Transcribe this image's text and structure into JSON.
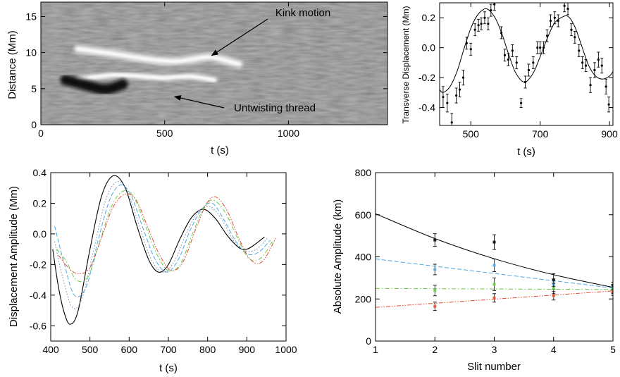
{
  "chart_data": [
    {
      "type": "heatmap",
      "xlabel": "t (s)",
      "ylabel": "Distance (Mm)",
      "xlim": [
        0,
        1400
      ],
      "ylim": [
        0,
        17
      ],
      "xticks": [
        0,
        500,
        1000
      ],
      "yticks": [
        0,
        5,
        10,
        15
      ],
      "colormap": "grayscale",
      "features": [
        {
          "name": "bright kink thread",
          "x": [
            150,
            300,
            450,
            550,
            650,
            700,
            800
          ],
          "y": [
            10.5,
            9.8,
            9.0,
            8.8,
            9.3,
            9.3,
            8.4
          ]
        },
        {
          "name": "untwisting thread",
          "x": [
            150,
            300,
            450,
            500,
            600,
            700
          ],
          "y": [
            6.3,
            6.9,
            6.6,
            6.5,
            6.7,
            6.2
          ]
        },
        {
          "name": "dark lane",
          "x": [
            100,
            180,
            260,
            330
          ],
          "y": [
            6.2,
            5.5,
            4.9,
            5.6
          ]
        }
      ],
      "annotations": [
        {
          "text": "Kink motion",
          "arrow_to": [
            690,
            9.6
          ]
        },
        {
          "text": "Untwisting thread",
          "arrow_to": [
            540,
            3.9
          ]
        }
      ]
    },
    {
      "type": "scatter",
      "xlabel": "t (s)",
      "ylabel": "Transverse Displacement (Mm)",
      "xlim": [
        410,
        910
      ],
      "ylim": [
        -0.52,
        0.3
      ],
      "xticks": [
        500,
        700,
        900
      ],
      "yticks": [
        -0.4,
        -0.2,
        0.0,
        0.2
      ],
      "points": [
        {
          "x": 420,
          "y": -0.33,
          "err": 0.07
        },
        {
          "x": 432,
          "y": -0.37,
          "err": 0.06
        },
        {
          "x": 445,
          "y": -0.5,
          "err": 0.06
        },
        {
          "x": 458,
          "y": -0.32,
          "err": 0.05
        },
        {
          "x": 468,
          "y": -0.28,
          "err": 0.05
        },
        {
          "x": 478,
          "y": -0.2,
          "err": 0.05
        },
        {
          "x": 488,
          "y": 0.03,
          "err": 0.04
        },
        {
          "x": 500,
          "y": -0.01,
          "err": 0.04
        },
        {
          "x": 512,
          "y": 0.12,
          "err": 0.04
        },
        {
          "x": 522,
          "y": 0.15,
          "err": 0.04
        },
        {
          "x": 530,
          "y": 0.16,
          "err": 0.04
        },
        {
          "x": 540,
          "y": 0.2,
          "err": 0.04
        },
        {
          "x": 550,
          "y": 0.16,
          "err": 0.04
        },
        {
          "x": 558,
          "y": 0.25,
          "err": 0.04
        },
        {
          "x": 568,
          "y": 0.29,
          "err": 0.04
        },
        {
          "x": 588,
          "y": 0.1,
          "err": 0.04
        },
        {
          "x": 598,
          "y": -0.05,
          "err": 0.04
        },
        {
          "x": 608,
          "y": -0.08,
          "err": 0.04
        },
        {
          "x": 620,
          "y": -0.02,
          "err": 0.04
        },
        {
          "x": 632,
          "y": -0.1,
          "err": 0.04
        },
        {
          "x": 645,
          "y": -0.37,
          "err": 0.03
        },
        {
          "x": 657,
          "y": -0.23,
          "err": 0.04
        },
        {
          "x": 667,
          "y": -0.15,
          "err": 0.04
        },
        {
          "x": 680,
          "y": -0.1,
          "err": 0.04
        },
        {
          "x": 692,
          "y": 0.0,
          "err": 0.04
        },
        {
          "x": 700,
          "y": 0.0,
          "err": 0.04
        },
        {
          "x": 710,
          "y": 0.0,
          "err": 0.04
        },
        {
          "x": 720,
          "y": 0.08,
          "err": 0.04
        },
        {
          "x": 730,
          "y": 0.18,
          "err": 0.04
        },
        {
          "x": 742,
          "y": 0.2,
          "err": 0.04
        },
        {
          "x": 752,
          "y": 0.18,
          "err": 0.04
        },
        {
          "x": 770,
          "y": 0.28,
          "err": 0.04
        },
        {
          "x": 780,
          "y": 0.26,
          "err": 0.04
        },
        {
          "x": 790,
          "y": 0.12,
          "err": 0.04
        },
        {
          "x": 800,
          "y": 0.07,
          "err": 0.04
        },
        {
          "x": 812,
          "y": -0.02,
          "err": 0.04
        },
        {
          "x": 822,
          "y": -0.1,
          "err": 0.04
        },
        {
          "x": 832,
          "y": -0.12,
          "err": 0.04
        },
        {
          "x": 845,
          "y": -0.25,
          "err": 0.05
        },
        {
          "x": 857,
          "y": -0.15,
          "err": 0.05
        },
        {
          "x": 868,
          "y": -0.08,
          "err": 0.05
        },
        {
          "x": 878,
          "y": -0.12,
          "err": 0.05
        },
        {
          "x": 890,
          "y": -0.26,
          "err": 0.05
        },
        {
          "x": 898,
          "y": -0.38,
          "err": 0.05
        }
      ],
      "fit": {
        "form": "damped sine",
        "x": [
          410,
          420,
          440,
          460,
          480,
          500,
          520,
          545,
          570,
          590,
          610,
          630,
          655,
          680,
          700,
          720,
          740,
          760,
          780,
          800,
          820,
          840,
          860,
          880,
          900,
          910
        ],
        "y": [
          -0.28,
          -0.3,
          -0.26,
          -0.16,
          -0.01,
          0.13,
          0.22,
          0.26,
          0.2,
          0.09,
          -0.05,
          -0.17,
          -0.23,
          -0.17,
          -0.06,
          0.06,
          0.16,
          0.2,
          0.21,
          0.14,
          0.01,
          -0.12,
          -0.19,
          -0.21,
          -0.19,
          -0.16
        ]
      }
    },
    {
      "type": "line",
      "xlabel": "t (s)",
      "ylabel": "Displacement Amplitude (Mm)",
      "xlim": [
        400,
        1000
      ],
      "ylim": [
        -0.7,
        0.4
      ],
      "xticks": [
        400,
        500,
        600,
        700,
        800,
        900,
        1000
      ],
      "yticks": [
        -0.6,
        -0.4,
        -0.2,
        0.0,
        0.2,
        0.4
      ],
      "series": [
        {
          "color": "#000000",
          "dash": "solid",
          "x": [
            405,
            420,
            435,
            450,
            470,
            500,
            530,
            560,
            590,
            620,
            650,
            675,
            700,
            730,
            760,
            790,
            820,
            850,
            880,
            900,
            920,
            945
          ],
          "y": [
            -0.1,
            -0.35,
            -0.52,
            -0.59,
            -0.5,
            -0.1,
            0.25,
            0.38,
            0.3,
            0.05,
            -0.17,
            -0.25,
            -0.2,
            -0.03,
            0.11,
            0.16,
            0.1,
            -0.01,
            -0.09,
            -0.1,
            -0.07,
            -0.02
          ]
        },
        {
          "color": "#6f8ab8",
          "dash": "dot",
          "x": [
            410,
            430,
            455,
            480,
            510,
            540,
            568,
            595,
            625,
            655,
            685,
            715,
            745,
            775,
            805,
            835,
            865,
            895,
            925,
            955
          ],
          "y": [
            -0.05,
            -0.28,
            -0.48,
            -0.42,
            -0.1,
            0.22,
            0.34,
            0.28,
            0.06,
            -0.16,
            -0.25,
            -0.18,
            0.0,
            0.14,
            0.18,
            0.1,
            -0.04,
            -0.11,
            -0.1,
            -0.02
          ]
        },
        {
          "color": "#4fa8e0",
          "dash": "dash",
          "x": [
            410,
            435,
            460,
            490,
            520,
            550,
            578,
            605,
            635,
            665,
            695,
            725,
            755,
            785,
            812,
            840,
            870,
            900,
            930,
            960
          ],
          "y": [
            0.05,
            -0.2,
            -0.4,
            -0.35,
            -0.05,
            0.22,
            0.32,
            0.25,
            0.04,
            -0.16,
            -0.25,
            -0.17,
            0.02,
            0.16,
            0.2,
            0.1,
            -0.04,
            -0.13,
            -0.12,
            -0.04
          ]
        },
        {
          "color": "#66cc44",
          "dash": "dashdot",
          "x": [
            415,
            440,
            465,
            495,
            525,
            555,
            585,
            612,
            642,
            672,
            700,
            730,
            760,
            790,
            815,
            845,
            875,
            905,
            935,
            965
          ],
          "y": [
            -0.1,
            -0.18,
            -0.3,
            -0.28,
            -0.05,
            0.18,
            0.28,
            0.24,
            0.05,
            -0.14,
            -0.24,
            -0.2,
            -0.01,
            0.17,
            0.22,
            0.14,
            -0.02,
            -0.16,
            -0.16,
            -0.05
          ]
        },
        {
          "color": "#e84a30",
          "dash": "dashdotdot",
          "x": [
            420,
            445,
            470,
            500,
            530,
            560,
            590,
            618,
            648,
            678,
            708,
            738,
            768,
            798,
            822,
            850,
            880,
            910,
            940,
            975
          ],
          "y": [
            -0.14,
            -0.22,
            -0.26,
            -0.22,
            -0.02,
            0.18,
            0.26,
            0.22,
            0.04,
            -0.14,
            -0.24,
            -0.18,
            0.02,
            0.2,
            0.24,
            0.15,
            -0.03,
            -0.17,
            -0.18,
            -0.02
          ]
        }
      ]
    },
    {
      "type": "scatter",
      "xlabel": "Slit number",
      "ylabel": "Absolute Amplitude (km)",
      "xlim": [
        1,
        5
      ],
      "ylim": [
        0,
        800
      ],
      "xticks": [
        1,
        2,
        3,
        4,
        5
      ],
      "yticks": [
        0,
        200,
        400,
        600,
        800
      ],
      "series": [
        {
          "color": "#000000",
          "dash": "solid",
          "x": [
            2,
            3,
            4,
            5
          ],
          "y": [
            480,
            470,
            290,
            260
          ],
          "err": [
            30,
            35,
            30,
            20
          ],
          "fit": {
            "x": [
              1,
              2,
              3,
              4,
              5
            ],
            "y": [
              605,
              487,
              391,
              315,
              255
            ]
          }
        },
        {
          "color": "#4fa8e0",
          "dash": "dash",
          "x": [
            2,
            3,
            4,
            5
          ],
          "y": [
            340,
            360,
            270,
            250
          ],
          "err": [
            25,
            30,
            25,
            20
          ],
          "fit": {
            "x": [
              1,
              5
            ],
            "y": [
              390,
              252
            ]
          }
        },
        {
          "color": "#66cc44",
          "dash": "dashdot",
          "x": [
            2,
            3,
            4,
            5
          ],
          "y": [
            240,
            270,
            250,
            245
          ],
          "err": [
            25,
            30,
            25,
            20
          ],
          "fit": {
            "x": [
              1,
              5
            ],
            "y": [
              250,
              245
            ]
          }
        },
        {
          "color": "#e84a30",
          "dash": "dashdotdot",
          "x": [
            2,
            3,
            4,
            5
          ],
          "y": [
            165,
            205,
            215,
            232
          ],
          "err": [
            20,
            20,
            20,
            15
          ],
          "fit": {
            "x": [
              1,
              5
            ],
            "y": [
              160,
              238
            ]
          }
        }
      ]
    }
  ]
}
